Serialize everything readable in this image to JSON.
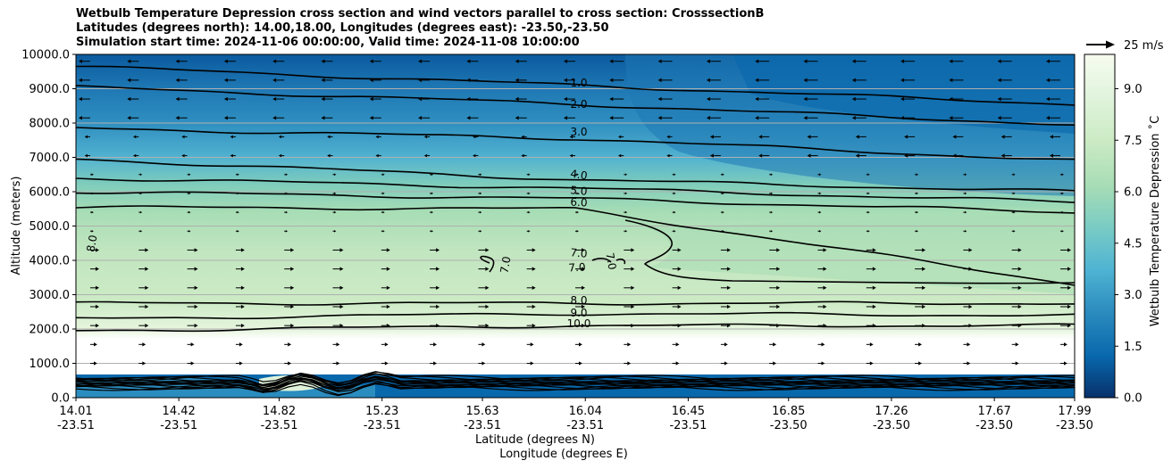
{
  "title_lines": [
    "Wetbulb Temperature Depression cross section and wind vectors parallel to cross section: CrosssectionB",
    "Latitudes (degrees north): 14.00,18.00, Longitudes (degrees east): -23.50,-23.50",
    "Simulation start time: 2024-11-06 00:00:00, Valid time: 2024-11-08 10:00:00"
  ],
  "chart_data": {
    "type": "heatmap",
    "ylabel": "Altitude (meters)",
    "xlabel_lat": "Latitude (degrees N)",
    "xlabel_lon": "Longitude (degrees E)",
    "ylim": [
      0,
      10000
    ],
    "y_ticks": [
      "0.0",
      "1000.0",
      "2000.0",
      "3000.0",
      "4000.0",
      "5000.0",
      "6000.0",
      "7000.0",
      "8000.0",
      "9000.0",
      "10000.0"
    ],
    "x_ticks": [
      {
        "lat": "14.01",
        "lon": "-23.51"
      },
      {
        "lat": "14.42",
        "lon": "-23.51"
      },
      {
        "lat": "14.82",
        "lon": "-23.51"
      },
      {
        "lat": "15.23",
        "lon": "-23.51"
      },
      {
        "lat": "15.63",
        "lon": "-23.51"
      },
      {
        "lat": "16.04",
        "lon": "-23.51"
      },
      {
        "lat": "16.45",
        "lon": "-23.51"
      },
      {
        "lat": "16.85",
        "lon": "-23.50"
      },
      {
        "lat": "17.26",
        "lon": "-23.50"
      },
      {
        "lat": "17.67",
        "lon": "-23.50"
      },
      {
        "lat": "17.99",
        "lon": "-23.50"
      }
    ],
    "grid": "horizontal",
    "colorbar": {
      "label": "Wetbulb Temperature Depression ˚C",
      "range": [
        0,
        10
      ],
      "ticks": [
        "0.0",
        "1.5",
        "3.0",
        "4.5",
        "6.0",
        "7.5",
        "9.0"
      ],
      "colormap_stops": [
        "#08306b",
        "#0868ac",
        "#2b8cbe",
        "#4eb3d3",
        "#7bccc4",
        "#a8ddb5",
        "#ccebc5",
        "#e0f3db",
        "#f7fcf0"
      ]
    },
    "contour_labels": [
      "1.0",
      "2.0",
      "3.0",
      "4.0",
      "5.0",
      "6.0",
      "7.0",
      "7.0",
      "7.0",
      "7.0",
      "8.0",
      "8.0",
      "9.0",
      "10.0"
    ],
    "contours": [
      {
        "level": 1.0,
        "left_alt": 9650,
        "mid_alt": 9100,
        "right_alt": 8550
      },
      {
        "level": 2.0,
        "left_alt": 9050,
        "mid_alt": 8550,
        "right_alt": 7950
      },
      {
        "level": 3.0,
        "left_alt": 7850,
        "mid_alt": 7550,
        "right_alt": 6900
      },
      {
        "level": 4.0,
        "left_alt": 6950,
        "mid_alt": 6350,
        "right_alt": 6000
      },
      {
        "level": 5.0,
        "left_alt": 6400,
        "mid_alt": 6100,
        "right_alt": 5700
      },
      {
        "level": 6.0,
        "left_alt": 6000,
        "mid_alt": 5800,
        "right_alt": 5400
      },
      {
        "level": 7.0,
        "left_alt": 5550,
        "mid_alt": 5500,
        "right_alt": 3300
      },
      {
        "level": 8.0,
        "left_alt": 2750,
        "mid_alt": 2750,
        "right_alt": 2750
      },
      {
        "level": 9.0,
        "left_alt": 2300,
        "mid_alt": 2450,
        "right_alt": 2400
      },
      {
        "level": 10.0,
        "left_alt": 1950,
        "mid_alt": 2100,
        "right_alt": 2100
      }
    ],
    "wind_reference": {
      "label": "25 m/s",
      "speed": 25
    }
  }
}
